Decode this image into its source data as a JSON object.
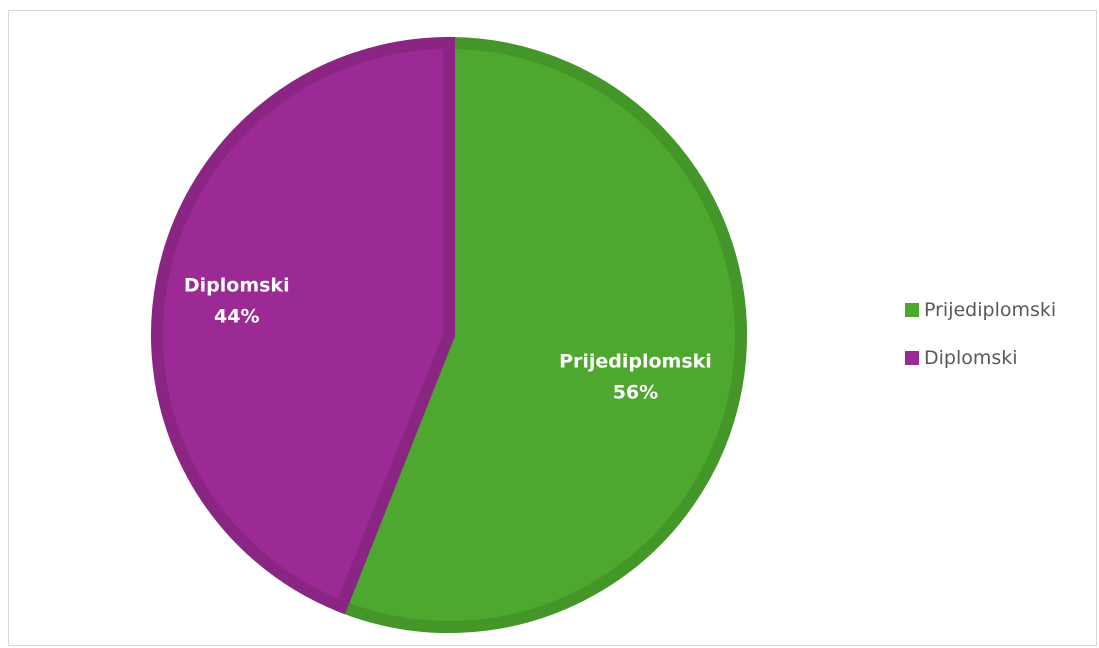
{
  "chart_data": {
    "type": "pie",
    "title": "",
    "slices": [
      {
        "label": "Prijediplomski",
        "value": 56,
        "pct_label": "56%",
        "color": "#4ea72e",
        "border": "#459628"
      },
      {
        "label": "Diplomski",
        "value": 44,
        "pct_label": "44%",
        "color": "#9c2a94",
        "border": "#8a2583"
      }
    ],
    "start_angle_deg": 0,
    "direction": "clockwise",
    "legend": {
      "position": "right",
      "items": [
        {
          "label": "Prijediplomski",
          "color": "#4ea72e"
        },
        {
          "label": "Diplomski",
          "color": "#9c2a94"
        }
      ]
    }
  }
}
